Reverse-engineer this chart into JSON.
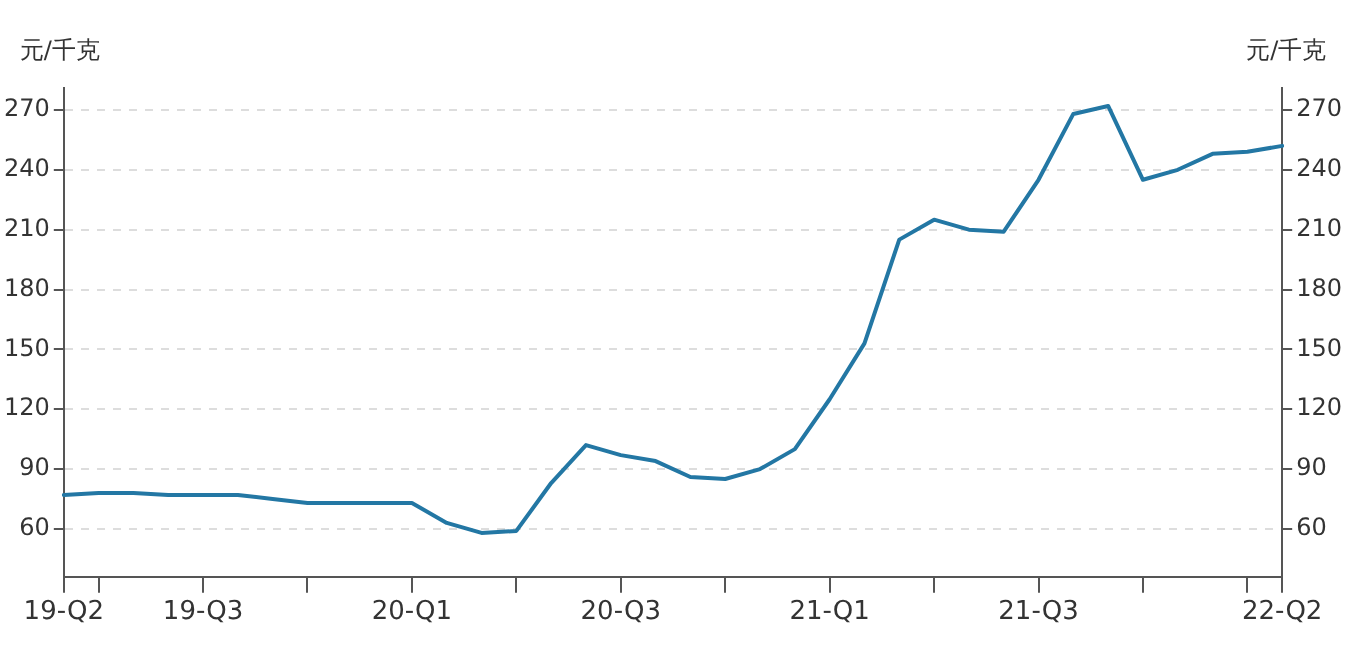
{
  "chart_data": {
    "type": "line",
    "ylabel": "元/千克",
    "y2label": "元/千克",
    "categories": [
      "19-Q2",
      null,
      null,
      null,
      "19-Q3",
      null,
      null,
      null,
      null,
      null,
      "20-Q1",
      null,
      null,
      null,
      null,
      null,
      "20-Q3",
      null,
      null,
      null,
      null,
      null,
      "21-Q1",
      null,
      null,
      null,
      null,
      null,
      "21-Q3",
      null,
      null,
      null,
      null,
      null,
      null,
      "22-Q2"
    ],
    "series": [
      {
        "color": "#2377a4",
        "values": [
          77,
          78,
          78,
          77,
          77,
          77,
          75,
          73,
          73,
          73,
          73,
          63,
          58,
          59,
          83,
          102,
          97,
          94,
          86,
          85,
          90,
          100,
          125,
          153,
          205,
          215,
          210,
          209,
          235,
          268,
          272,
          235,
          240,
          248,
          249,
          252
        ]
      }
    ],
    "ylim": [
      36,
      281
    ],
    "yticks": [
      60,
      90,
      120,
      150,
      180,
      210,
      240,
      270
    ],
    "y2lim": [
      36,
      281
    ],
    "y2ticks": [
      60,
      90,
      120,
      150,
      180,
      210,
      240,
      270
    ],
    "grid": "y",
    "legend": false,
    "marker": "none",
    "line_style": "solid"
  }
}
